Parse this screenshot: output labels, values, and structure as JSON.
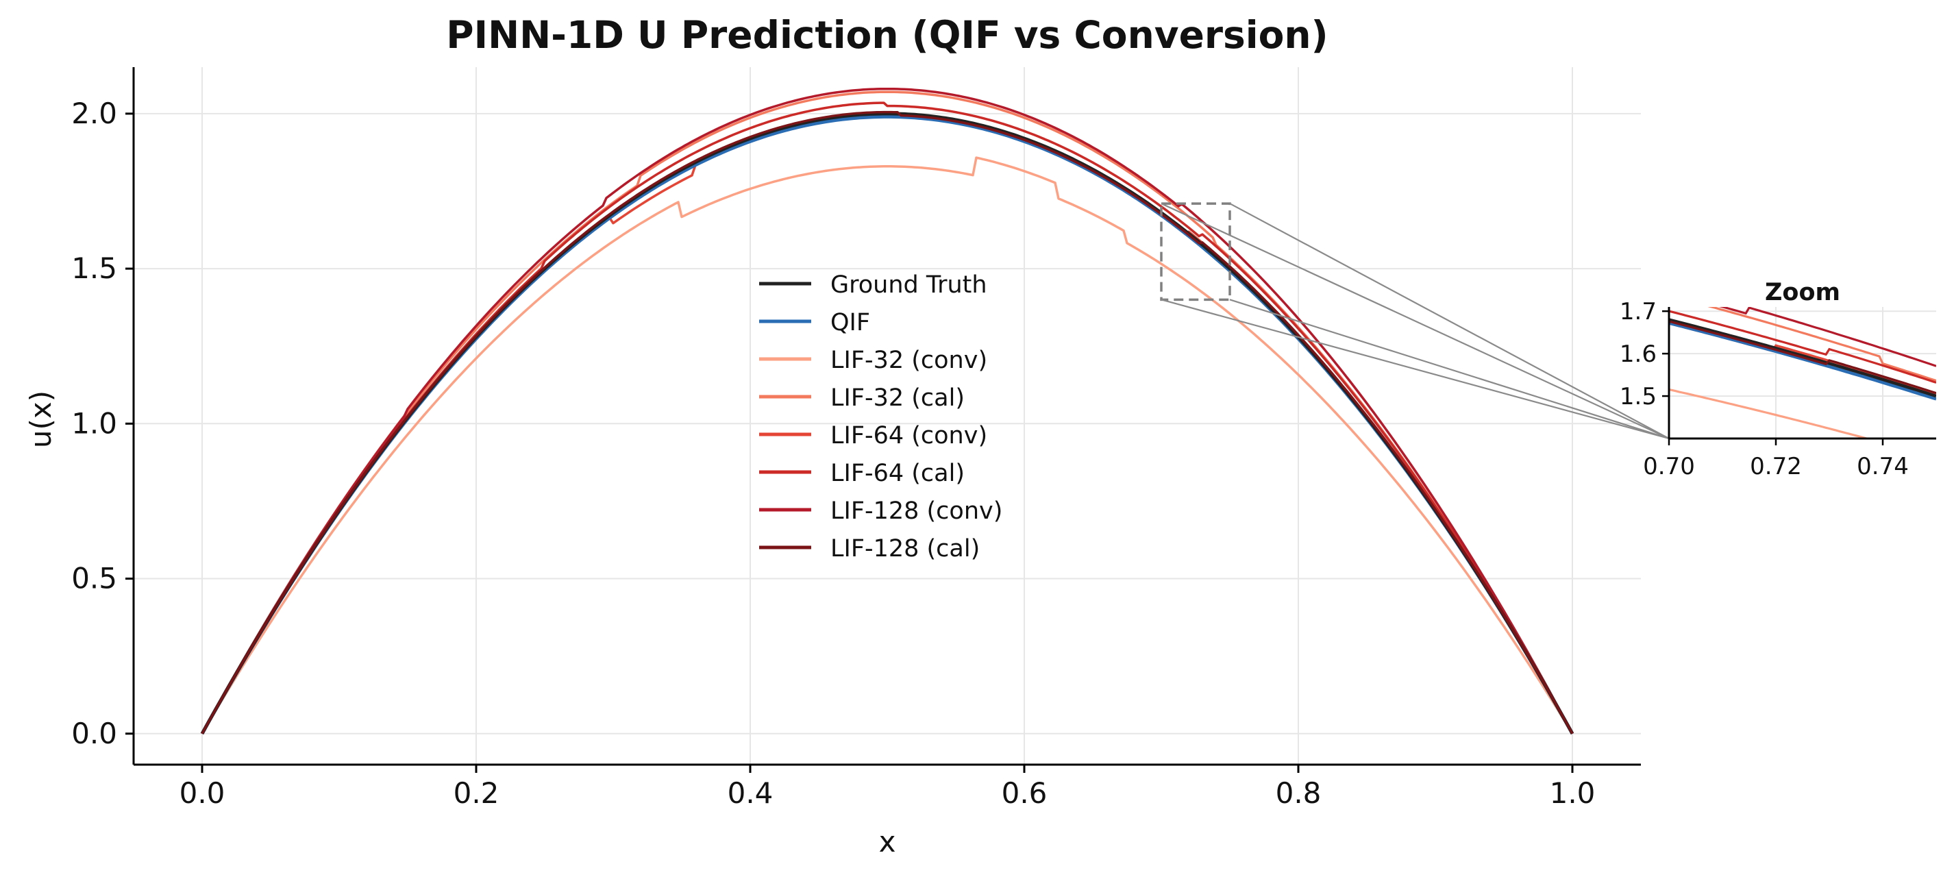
{
  "chart_data": {
    "type": "line",
    "title": "PINN-1D U Prediction (QIF vs Conversion)",
    "xlabel": "x",
    "ylabel": "u(x)",
    "xlim": [
      -0.05,
      1.05
    ],
    "ylim": [
      -0.1,
      2.15
    ],
    "xticks": [
      "0.0",
      "0.2",
      "0.4",
      "0.6",
      "0.8",
      "1.0"
    ],
    "yticks": [
      "0.0",
      "0.5",
      "1.0",
      "1.5",
      "2.0"
    ],
    "grid": true,
    "legend_position": "center",
    "series": [
      {
        "name": "Ground Truth",
        "color": "#222222",
        "scale": 1.0,
        "offset": 0.0,
        "steps": []
      },
      {
        "name": "QIF",
        "color": "#2a6db4",
        "scale": 1.0,
        "offset": -0.01,
        "steps": []
      },
      {
        "name": "LIF-32 (conv)",
        "color": "#fca184",
        "scale": 0.955,
        "offset": -0.02,
        "steps": [
          {
            "x": 0.35,
            "dy": -0.06
          },
          {
            "x": 0.565,
            "dy": 0.06
          },
          {
            "x": 0.625,
            "dy": -0.05
          },
          {
            "x": 0.675,
            "dy": -0.04
          }
        ]
      },
      {
        "name": "LIF-32 (cal)",
        "color": "#f47a5e",
        "scale": 1.01,
        "offset": 0.02,
        "steps": [
          {
            "x": 0.32,
            "dy": 0.03
          },
          {
            "x": 0.74,
            "dy": -0.02
          }
        ]
      },
      {
        "name": "LIF-64 (conv)",
        "color": "#e54535",
        "scale": 0.985,
        "offset": 0.02,
        "steps": [
          {
            "x": 0.3,
            "dy": -0.03
          },
          {
            "x": 0.36,
            "dy": 0.03
          },
          {
            "x": 0.72,
            "dy": 0.02
          }
        ]
      },
      {
        "name": "LIF-64 (cal)",
        "color": "#cc2a26",
        "scale": 1.0,
        "offset": 0.015,
        "steps": [
          {
            "x": 0.25,
            "dy": 0.02
          },
          {
            "x": 0.5,
            "dy": -0.01
          },
          {
            "x": 0.73,
            "dy": 0.02
          }
        ]
      },
      {
        "name": "LIF-128 (conv)",
        "color": "#b51a2b",
        "scale": 1.0,
        "offset": 0.04,
        "steps": [
          {
            "x": 0.15,
            "dy": 0.02
          },
          {
            "x": 0.295,
            "dy": 0.02
          },
          {
            "x": 0.715,
            "dy": 0.02
          }
        ]
      },
      {
        "name": "LIF-128 (cal)",
        "color": "#7a1416",
        "scale": 1.0,
        "offset": 0.005,
        "steps": [
          {
            "x": 0.51,
            "dy": -0.01
          },
          {
            "x": 0.73,
            "dy": 0.015
          }
        ]
      }
    ],
    "zoom": {
      "title": "Zoom",
      "xlim": [
        0.7,
        0.75
      ],
      "ylim": [
        1.4,
        1.71
      ],
      "xticks": [
        "0.70",
        "0.72",
        "0.74"
      ],
      "yticks": [
        "1.5",
        "1.6",
        "1.7"
      ]
    }
  }
}
